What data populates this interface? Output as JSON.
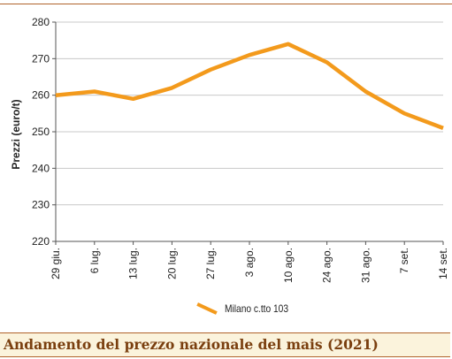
{
  "chart_data": {
    "type": "line",
    "categories": [
      "29 giu.",
      "6 lug.",
      "13 lug.",
      "20 lug.",
      "27 lug.",
      "3 ago.",
      "10 ago.",
      "24 ago.",
      "31 ago.",
      "7 set.",
      "14 set."
    ],
    "series": [
      {
        "name": "Milano  c.tto 103",
        "values": [
          260,
          261,
          259,
          262,
          267,
          271,
          274,
          269,
          261,
          255,
          251
        ]
      }
    ],
    "ylabel": "Prezzi (euro/t)",
    "ylim": [
      220,
      280
    ],
    "yticks": [
      220,
      230,
      240,
      250,
      260,
      270,
      280
    ],
    "grid": "horizontal",
    "legend": "bottom-center",
    "line_color": "#f39a1c"
  },
  "caption": "Andamento del prezzo nazionale del mais (2021)"
}
